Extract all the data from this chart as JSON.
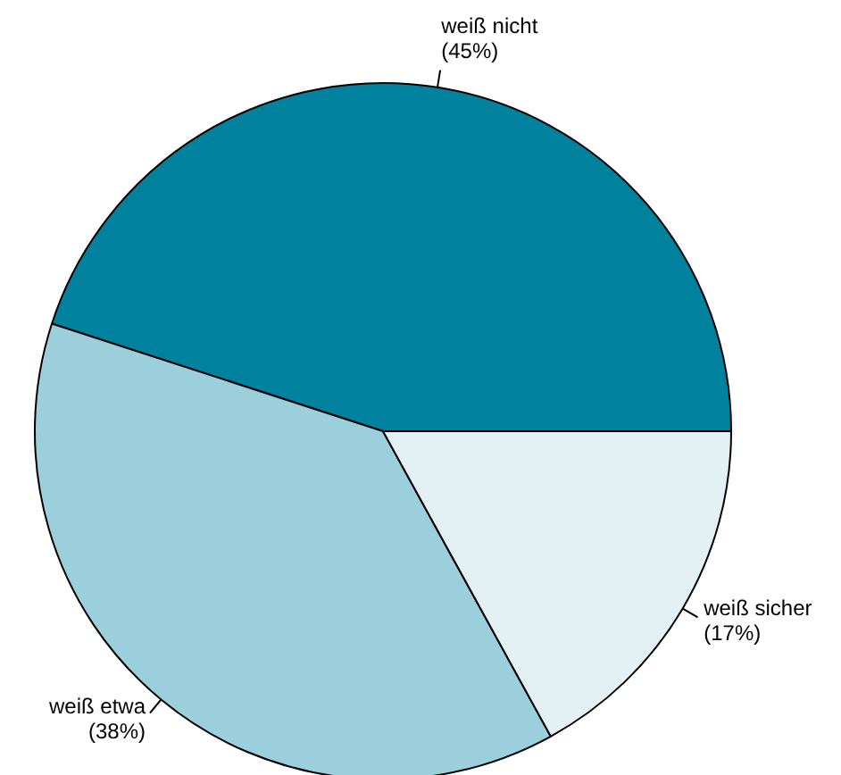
{
  "chart_data": {
    "type": "pie",
    "categories": [
      "weiß nicht",
      "weiß etwa",
      "weiß sicher"
    ],
    "values": [
      45,
      38,
      17
    ],
    "colors": [
      "#00829f",
      "#9ccfdc",
      "#e3f1f5"
    ],
    "value_labels": [
      "(45%)",
      "(38%)",
      "(17%)"
    ]
  }
}
